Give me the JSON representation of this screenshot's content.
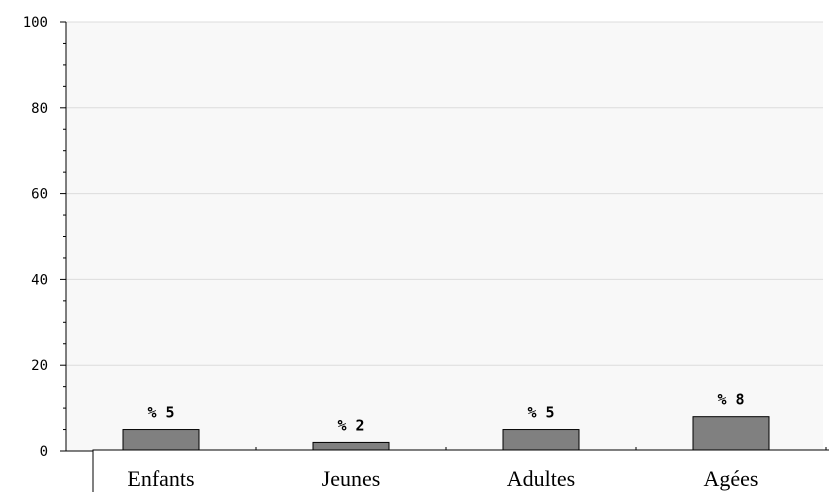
{
  "chart_data": {
    "type": "bar",
    "title": "",
    "xlabel": "",
    "ylabel": "",
    "categories": [
      "Enfants",
      "Jeunes",
      "Adultes",
      "Agées"
    ],
    "values": [
      5,
      2,
      5,
      8
    ],
    "data_labels": [
      "% 5",
      "% 2",
      "% 5",
      "% 8"
    ],
    "ylim": [
      0,
      100
    ],
    "yticks": [
      0,
      20,
      40,
      60,
      80,
      100
    ],
    "grid": true,
    "legend": "none",
    "colors": {
      "bar_fill": "#808080",
      "bar_stroke": "#000000",
      "plot_background": "#f8f8f8",
      "gridline": "#dcdcdc",
      "axis": "#000000"
    }
  }
}
